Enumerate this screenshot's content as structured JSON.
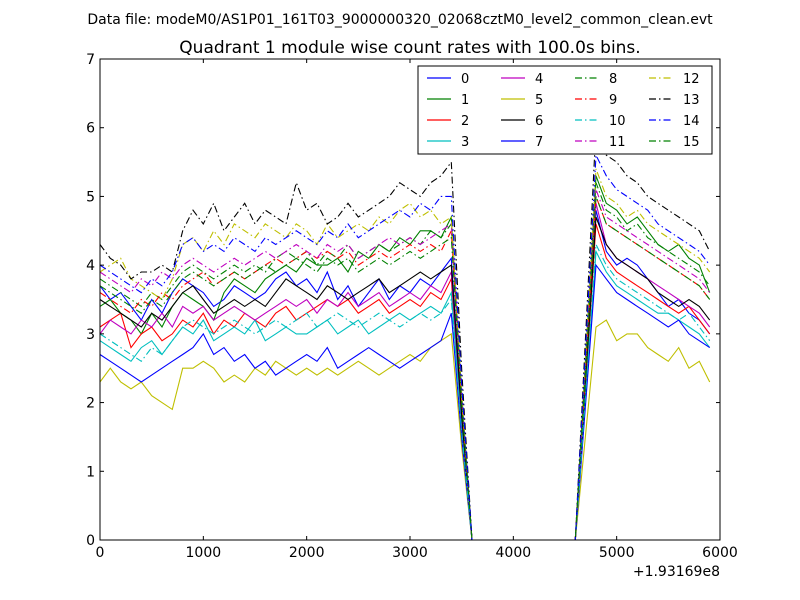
{
  "suptitle": "Data file: modeM0/AS1P01_161T03_9000000320_02068cztM0_level2_common_clean.evt",
  "chart_data": {
    "type": "line",
    "title": "Quadrant 1 module wise count rates with 100.0s bins.",
    "xlabel": "",
    "ylabel": "",
    "x_offset_label": "+1.93169e8",
    "xlim": [
      0,
      6000
    ],
    "ylim": [
      0,
      7
    ],
    "xticks": [
      0,
      1000,
      2000,
      3000,
      4000,
      5000,
      6000
    ],
    "yticks": [
      0,
      1,
      2,
      3,
      4,
      5,
      6,
      7
    ],
    "legend_position": "top-right",
    "legend_columns": 4,
    "segments": [
      {
        "x": [
          0,
          100,
          200,
          300,
          400,
          500,
          600,
          700,
          800,
          900,
          1000,
          1100,
          1200,
          1300,
          1400,
          1500,
          1600,
          1700,
          1800,
          1900,
          2000,
          2100,
          2200,
          2300,
          2400,
          2500,
          2600,
          2700,
          2800,
          2900,
          3000,
          3100,
          3200,
          3300,
          3400
        ]
      },
      {
        "x": [
          3400,
          3500,
          3600,
          3700,
          3800,
          3900,
          4000,
          4100,
          4200,
          4300,
          4400,
          4500,
          4600,
          4700,
          4800
        ]
      },
      {
        "x": [
          4800,
          4900,
          5000,
          5100,
          5200,
          5300,
          5400,
          5500,
          5600,
          5700,
          5800,
          5900
        ]
      }
    ],
    "series": [
      {
        "name": "0",
        "color": "#0000ff",
        "dash": "solid",
        "active1": [
          3.7,
          3.5,
          3.6,
          3.4,
          3.2,
          3.5,
          3.3,
          3.6,
          3.8,
          3.7,
          3.6,
          3.4,
          3.5,
          3.7,
          3.6,
          3.5,
          3.6,
          3.8,
          3.9,
          3.7,
          3.8,
          3.6,
          3.9,
          3.5,
          3.7,
          3.4,
          3.6,
          3.8,
          3.5,
          3.7,
          3.6,
          3.8,
          3.7,
          3.9,
          4.1
        ],
        "active2": [
          4.8,
          4.2,
          4.0,
          4.1,
          4.0,
          3.8,
          3.6,
          3.4,
          3.5,
          3.3,
          3.2,
          3.0
        ],
        "tail": 2.2
      },
      {
        "name": "1",
        "color": "#008000",
        "dash": "solid",
        "active1": [
          3.4,
          3.5,
          3.3,
          3.2,
          3.0,
          3.3,
          3.1,
          3.4,
          3.6,
          3.5,
          3.4,
          3.2,
          3.6,
          3.8,
          3.7,
          3.6,
          3.8,
          3.9,
          4.0,
          3.9,
          4.1,
          4.0,
          4.0,
          4.1,
          3.9,
          4.2,
          4.1,
          4.3,
          4.2,
          4.4,
          4.3,
          4.5,
          4.5,
          4.4,
          4.7
        ],
        "active2": [
          5.3,
          4.9,
          4.8,
          4.6,
          4.7,
          4.5,
          4.3,
          4.2,
          4.3,
          4.1,
          4.0,
          3.6
        ],
        "tail": 2.4
      },
      {
        "name": "2",
        "color": "#ff0000",
        "dash": "solid",
        "active1": [
          3.1,
          3.2,
          3.3,
          2.8,
          3.0,
          3.1,
          2.9,
          3.0,
          3.2,
          3.1,
          3.3,
          3.0,
          3.2,
          3.1,
          3.3,
          3.2,
          3.1,
          3.3,
          3.4,
          3.2,
          3.3,
          3.4,
          3.5,
          3.4,
          3.5,
          3.3,
          3.4,
          3.5,
          3.3,
          3.4,
          3.5,
          3.4,
          3.6,
          3.5,
          3.8
        ],
        "active2": [
          4.6,
          4.1,
          3.9,
          3.8,
          3.7,
          3.6,
          3.5,
          3.4,
          3.3,
          3.4,
          3.2,
          3.0
        ],
        "tail": 2.4
      },
      {
        "name": "3",
        "color": "#00bfbf",
        "dash": "solid",
        "active1": [
          2.9,
          2.8,
          2.7,
          2.6,
          2.8,
          2.9,
          2.7,
          2.9,
          3.1,
          3.0,
          3.2,
          2.9,
          3.0,
          3.1,
          3.0,
          3.2,
          2.9,
          3.0,
          3.1,
          3.0,
          3.0,
          3.1,
          3.2,
          3.0,
          3.1,
          3.2,
          3.0,
          3.1,
          3.2,
          3.3,
          3.2,
          3.3,
          3.4,
          3.3,
          3.6
        ],
        "active2": [
          4.2,
          3.9,
          3.7,
          3.6,
          3.5,
          3.4,
          3.3,
          3.3,
          3.2,
          3.1,
          3.0,
          2.8
        ],
        "tail": 2.2
      },
      {
        "name": "4",
        "color": "#bf00bf",
        "dash": "solid",
        "active1": [
          3.0,
          3.2,
          3.1,
          3.0,
          3.2,
          3.1,
          3.3,
          3.1,
          3.4,
          3.3,
          3.4,
          3.2,
          3.3,
          3.4,
          3.3,
          3.2,
          3.3,
          3.4,
          3.5,
          3.4,
          3.5,
          3.3,
          3.5,
          3.4,
          3.6,
          3.4,
          3.5,
          3.6,
          3.4,
          3.5,
          3.6,
          3.5,
          3.7,
          3.6,
          3.9
        ],
        "active2": [
          4.9,
          4.3,
          4.1,
          4.0,
          3.9,
          3.8,
          3.7,
          3.6,
          3.5,
          3.4,
          3.3,
          3.1
        ],
        "tail": 2.3
      },
      {
        "name": "5",
        "color": "#bfbf00",
        "dash": "solid",
        "active1": [
          2.3,
          2.5,
          2.3,
          2.2,
          2.3,
          2.1,
          2.0,
          1.9,
          2.5,
          2.5,
          2.6,
          2.5,
          2.3,
          2.4,
          2.3,
          2.5,
          2.4,
          2.6,
          2.5,
          2.4,
          2.5,
          2.4,
          2.5,
          2.4,
          2.5,
          2.6,
          2.5,
          2.4,
          2.5,
          2.6,
          2.7,
          2.6,
          2.8,
          2.9,
          3.0
        ],
        "active2": [
          3.1,
          3.2,
          2.9,
          3.0,
          3.0,
          2.8,
          2.7,
          2.6,
          2.8,
          2.5,
          2.6,
          2.3
        ],
        "tail": 1.8
      },
      {
        "name": "6",
        "color": "#000000",
        "dash": "solid",
        "active1": [
          3.5,
          3.4,
          3.3,
          3.2,
          3.1,
          3.3,
          3.2,
          3.4,
          3.6,
          3.7,
          3.5,
          3.3,
          3.4,
          3.5,
          3.4,
          3.5,
          3.4,
          3.6,
          3.8,
          3.7,
          3.6,
          3.5,
          3.7,
          3.6,
          3.5,
          3.6,
          3.7,
          3.8,
          3.6,
          3.7,
          3.8,
          3.9,
          3.8,
          3.9,
          4.0
        ],
        "active2": [
          4.7,
          4.3,
          4.1,
          4.0,
          3.9,
          3.8,
          3.6,
          3.5,
          3.4,
          3.5,
          3.4,
          3.2
        ],
        "tail": 2.5
      },
      {
        "name": "7",
        "color": "#0000ff",
        "dash": "solid",
        "active1": [
          2.7,
          2.6,
          2.5,
          2.4,
          2.3,
          2.4,
          2.5,
          2.6,
          2.7,
          2.8,
          3.0,
          2.7,
          2.8,
          2.6,
          2.7,
          2.5,
          2.6,
          2.4,
          2.5,
          2.6,
          2.7,
          2.6,
          2.8,
          2.5,
          2.6,
          2.7,
          2.8,
          2.7,
          2.6,
          2.5,
          2.6,
          2.7,
          2.8,
          2.9,
          3.3
        ],
        "active2": [
          4.0,
          3.8,
          3.6,
          3.5,
          3.4,
          3.3,
          3.2,
          3.1,
          3.2,
          3.0,
          2.9,
          2.8
        ],
        "tail": 2.1
      },
      {
        "name": "8",
        "color": "#008000",
        "dash": "dashdot",
        "active1": [
          3.8,
          3.7,
          3.6,
          3.5,
          3.4,
          3.6,
          3.5,
          3.7,
          3.9,
          4.0,
          3.9,
          3.8,
          3.9,
          4.0,
          3.9,
          4.0,
          3.9,
          4.1,
          4.2,
          4.1,
          4.2,
          4.0,
          4.2,
          4.1,
          4.3,
          4.1,
          4.2,
          4.3,
          4.2,
          4.3,
          4.4,
          4.3,
          4.5,
          4.4,
          4.6
        ],
        "active2": [
          5.2,
          4.8,
          4.7,
          4.5,
          4.6,
          4.4,
          4.3,
          4.2,
          4.1,
          4.0,
          3.9,
          3.7
        ],
        "tail": 2.4
      },
      {
        "name": "9",
        "color": "#ff0000",
        "dash": "dashdot",
        "active1": [
          3.6,
          3.5,
          3.4,
          3.3,
          3.5,
          3.4,
          3.6,
          3.5,
          3.7,
          3.8,
          3.9,
          3.7,
          3.8,
          3.9,
          3.8,
          3.9,
          4.0,
          4.1,
          4.0,
          4.1,
          4.2,
          4.1,
          4.2,
          4.1,
          4.2,
          4.0,
          4.1,
          4.2,
          4.1,
          4.2,
          4.3,
          4.2,
          4.3,
          4.2,
          4.5
        ],
        "active2": [
          5.0,
          4.6,
          4.5,
          4.4,
          4.3,
          4.2,
          4.1,
          4.0,
          3.9,
          3.8,
          3.7,
          3.5
        ],
        "tail": 2.3
      },
      {
        "name": "10",
        "color": "#00bfbf",
        "dash": "dashdot",
        "active1": [
          3.0,
          2.9,
          2.8,
          2.7,
          2.6,
          2.8,
          2.7,
          2.9,
          3.1,
          3.2,
          3.1,
          3.0,
          3.1,
          3.2,
          3.1,
          3.0,
          3.1,
          3.2,
          3.1,
          3.2,
          3.3,
          3.1,
          3.2,
          3.3,
          3.2,
          3.1,
          3.2,
          3.3,
          3.2,
          3.1,
          3.2,
          3.3,
          3.2,
          3.3,
          3.5
        ],
        "active2": [
          4.3,
          4.0,
          3.8,
          3.7,
          3.6,
          3.5,
          3.4,
          3.3,
          3.2,
          3.3,
          3.1,
          2.9
        ],
        "tail": 2.1
      },
      {
        "name": "11",
        "color": "#bf00bf",
        "dash": "dashdot",
        "active1": [
          3.9,
          3.8,
          3.7,
          3.6,
          3.8,
          3.7,
          3.9,
          3.8,
          4.0,
          4.1,
          4.0,
          3.9,
          4.0,
          4.1,
          4.0,
          4.1,
          4.2,
          4.1,
          4.2,
          4.3,
          4.2,
          4.1,
          4.3,
          4.2,
          4.3,
          4.1,
          4.2,
          4.3,
          4.4,
          4.3,
          4.4,
          4.3,
          4.4,
          4.5,
          4.6
        ],
        "active2": [
          5.1,
          4.7,
          4.6,
          4.5,
          4.4,
          4.3,
          4.2,
          4.1,
          4.0,
          3.9,
          3.8,
          3.6
        ],
        "tail": 2.5
      },
      {
        "name": "12",
        "color": "#bfbf00",
        "dash": "dashdot",
        "active1": [
          3.9,
          4.0,
          4.1,
          3.8,
          3.7,
          3.6,
          3.5,
          3.8,
          4.3,
          4.4,
          4.2,
          4.5,
          4.3,
          4.6,
          4.5,
          4.4,
          4.6,
          4.5,
          4.4,
          4.6,
          4.5,
          4.3,
          4.6,
          4.4,
          4.5,
          4.6,
          4.5,
          4.7,
          4.6,
          4.8,
          4.9,
          4.7,
          4.8,
          4.6,
          4.7
        ],
        "active2": [
          5.4,
          5.0,
          4.9,
          4.7,
          4.8,
          4.6,
          4.5,
          4.4,
          4.3,
          4.2,
          4.1,
          3.9
        ],
        "tail": 2.6
      },
      {
        "name": "13",
        "color": "#000000",
        "dash": "dashdot",
        "active1": [
          4.3,
          4.1,
          4.0,
          3.8,
          3.9,
          3.9,
          4.0,
          3.9,
          4.5,
          4.8,
          4.6,
          4.9,
          4.5,
          4.7,
          4.9,
          4.6,
          4.8,
          4.7,
          4.6,
          5.2,
          4.8,
          4.9,
          4.6,
          4.7,
          4.9,
          4.7,
          4.8,
          4.9,
          5.0,
          5.2,
          5.1,
          5.0,
          5.2,
          5.3,
          5.5
        ],
        "active2": [
          6.0,
          5.6,
          5.5,
          5.3,
          5.2,
          5.0,
          4.9,
          4.8,
          4.7,
          4.6,
          4.5,
          4.2
        ],
        "tail": 2.9
      },
      {
        "name": "14",
        "color": "#0000ff",
        "dash": "dashdot",
        "active1": [
          4.0,
          3.9,
          3.8,
          3.7,
          3.6,
          3.8,
          3.7,
          3.9,
          4.3,
          4.4,
          4.2,
          4.3,
          4.2,
          4.4,
          4.3,
          4.2,
          4.4,
          4.3,
          4.4,
          4.5,
          4.4,
          4.3,
          4.5,
          4.4,
          4.6,
          4.4,
          4.5,
          4.6,
          4.7,
          4.8,
          4.7,
          4.9,
          4.8,
          5.0,
          5.0
        ],
        "active2": [
          5.6,
          5.3,
          5.1,
          5.0,
          4.9,
          4.8,
          4.6,
          4.5,
          4.4,
          4.3,
          4.2,
          4.0
        ],
        "tail": 2.7
      },
      {
        "name": "15",
        "color": "#008000",
        "dash": "dashdot",
        "active1": [
          3.7,
          3.6,
          3.5,
          3.4,
          3.3,
          3.5,
          3.4,
          3.6,
          3.8,
          3.9,
          3.8,
          3.7,
          3.8,
          3.9,
          3.8,
          3.9,
          4.0,
          3.9,
          4.0,
          4.1,
          4.0,
          3.9,
          4.1,
          4.0,
          4.1,
          3.9,
          4.0,
          4.1,
          4.0,
          4.1,
          4.2,
          4.1,
          4.2,
          4.3,
          4.4
        ],
        "active2": [
          5.0,
          4.6,
          4.5,
          4.4,
          4.3,
          4.2,
          4.1,
          4.0,
          3.9,
          3.8,
          3.7,
          3.5
        ],
        "tail": 2.4
      }
    ]
  }
}
